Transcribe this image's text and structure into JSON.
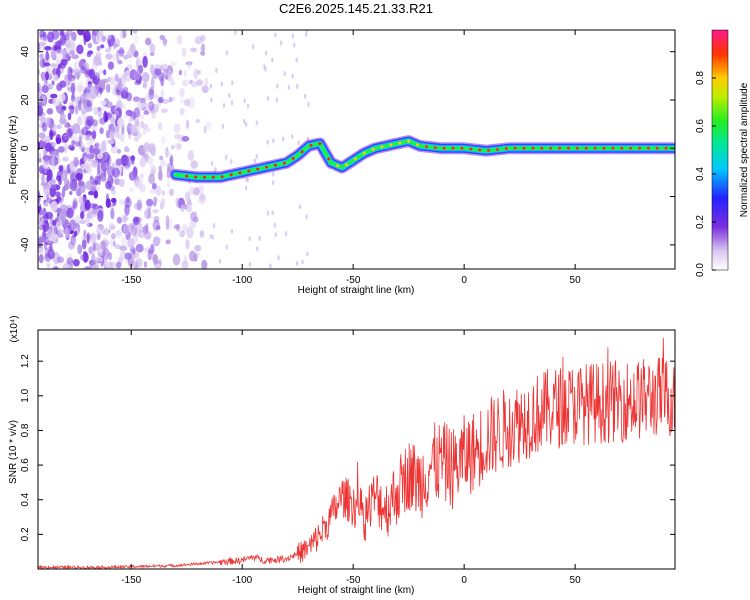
{
  "chart_data": [
    {
      "type": "heatmap",
      "title": "C2E6.2025.145.21.33.R21",
      "xlabel": "Height of straight line (km)",
      "ylabel": "Frequency (Hz)",
      "xlim": [
        -192,
        95
      ],
      "ylim": [
        -50,
        49
      ],
      "xticks": [
        -150,
        -100,
        -50,
        0,
        50
      ],
      "yticks": [
        -40,
        -20,
        0,
        20,
        40
      ],
      "colorbar": {
        "label": "Normalized spectral amplitude",
        "range": [
          0,
          1
        ],
        "ticks": [
          0.0,
          0.2,
          0.4,
          0.6,
          0.8
        ],
        "tick_labels": [
          "0.0",
          "0.2",
          "0.4",
          "0.6",
          "0.8"
        ]
      },
      "ridge": {
        "x": [
          -130,
          -120,
          -110,
          -100,
          -90,
          -80,
          -75,
          -70,
          -65,
          -60,
          -55,
          -50,
          -45,
          -40,
          -35,
          -30,
          -25,
          -20,
          -10,
          0,
          10,
          20,
          40,
          60,
          80,
          95
        ],
        "y": [
          -11,
          -12,
          -12,
          -10,
          -8,
          -6,
          -3,
          1,
          2,
          -6,
          -8,
          -5,
          -2,
          0,
          1,
          2,
          3,
          1,
          0,
          0,
          -1,
          0,
          0,
          0,
          0,
          0
        ]
      }
    },
    {
      "type": "line",
      "title": "",
      "xlabel": "Height of straight line (km)",
      "ylabel": "SNR (10 * v/v)",
      "yscale_label": "(x10⁴)",
      "xlim": [
        -192,
        95
      ],
      "ylim": [
        0,
        1.38
      ],
      "xticks": [
        -150,
        -100,
        -50,
        0,
        50
      ],
      "yticks": [
        0.2,
        0.4,
        0.6,
        0.8,
        1.0,
        1.2
      ],
      "series": [
        {
          "name": "SNR",
          "color": "#ee3333",
          "x": [
            -192,
            -160,
            -130,
            -120,
            -110,
            -100,
            -95,
            -90,
            -80,
            -70,
            -65,
            -60,
            -55,
            -50,
            -45,
            -40,
            -35,
            -30,
            -25,
            -20,
            -15,
            -10,
            -5,
            0,
            5,
            10,
            20,
            30,
            40,
            50,
            60,
            70,
            80,
            90,
            95
          ],
          "y": [
            0.01,
            0.01,
            0.02,
            0.03,
            0.04,
            0.05,
            0.07,
            0.05,
            0.06,
            0.12,
            0.2,
            0.3,
            0.42,
            0.38,
            0.3,
            0.42,
            0.35,
            0.45,
            0.55,
            0.5,
            0.6,
            0.62,
            0.58,
            0.65,
            0.68,
            0.75,
            0.82,
            0.88,
            0.93,
            0.95,
            0.96,
            0.97,
            0.98,
            1.0,
            0.99
          ]
        }
      ]
    }
  ]
}
